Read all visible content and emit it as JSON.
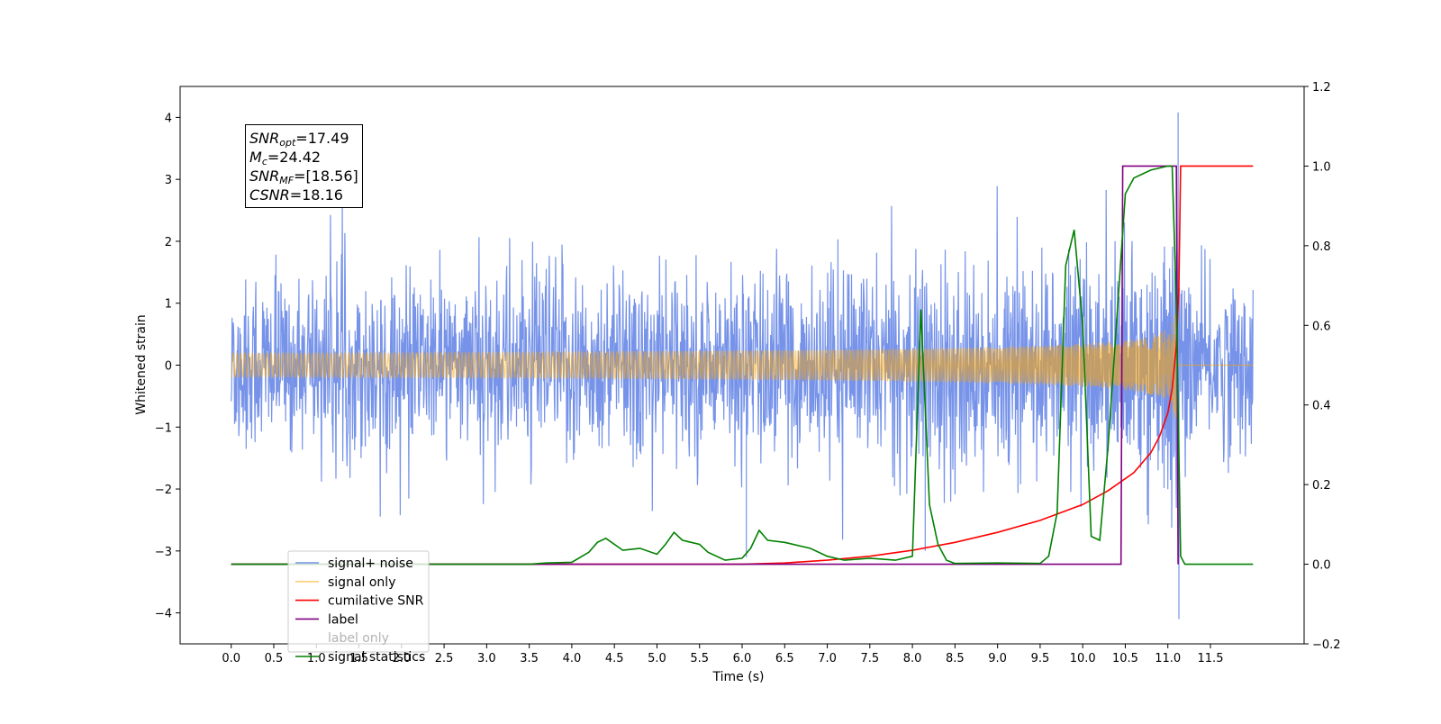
{
  "chart_data": {
    "type": "line",
    "xlabel": "Time (s)",
    "ylabel": "Whitened strain",
    "xlim": [
      -0.6,
      12.6
    ],
    "ylim": [
      -4.5,
      4.5
    ],
    "y2lim": [
      -0.2,
      1.2
    ],
    "x_ticks": [
      "0.0",
      "0.5",
      "1.0",
      "1.5",
      "2.0",
      "2.5",
      "3.0",
      "3.5",
      "4.0",
      "4.5",
      "5.0",
      "5.5",
      "6.0",
      "6.5",
      "7.0",
      "7.5",
      "8.0",
      "8.5",
      "9.0",
      "9.5",
      "10.0",
      "10.5",
      "11.0",
      "11.5"
    ],
    "y_ticks": [
      "4",
      "3",
      "2",
      "1",
      "0",
      "−1",
      "−2",
      "−3",
      "−4"
    ],
    "y2_ticks": [
      "1.2",
      "1.0",
      "0.8",
      "0.6",
      "0.4",
      "0.2",
      "0.0",
      "−0.2"
    ],
    "grid": false,
    "legend_position": "lower-left",
    "annotation": {
      "snr_opt": {
        "symbol": "SNR",
        "sub": "opt",
        "value": "=17.49"
      },
      "mc": {
        "symbol": "M",
        "sub": "c",
        "value": "=24.42"
      },
      "snr_mf": {
        "symbol": "SNR",
        "sub": "MF",
        "value": "=[18.56]"
      },
      "csnr": {
        "symbol": "CSNR",
        "sub": "",
        "value": "=18.16"
      }
    },
    "series": [
      {
        "name": "signal+ noise",
        "color": "#4169e1",
        "axis": "left",
        "description_of_values": "noise band",
        "x_range": [
          0.0,
          12.0
        ],
        "typical_amplitude": 1.4,
        "spike_x": [
          11.12,
          6.05,
          8.15
        ],
        "spike_y": [
          4.08,
          -3.1,
          -3.0
        ]
      },
      {
        "name": "signal only",
        "color": "#ffa500",
        "axis": "left",
        "x_range": [
          0.0,
          12.0
        ],
        "chirp_peak_x": 11.1,
        "chirp_peak_amplitude": 1.9
      },
      {
        "name": "cumilative SNR",
        "color": "#ff0000",
        "axis": "right",
        "x": [
          0,
          6,
          6.5,
          7,
          7.5,
          8,
          8.5,
          9,
          9.5,
          10,
          10.3,
          10.6,
          10.8,
          10.9,
          11.0,
          11.05,
          11.1,
          11.13,
          11.15,
          11.2,
          12.0
        ],
        "y": [
          0,
          0,
          0.003,
          0.01,
          0.02,
          0.035,
          0.055,
          0.08,
          0.11,
          0.15,
          0.185,
          0.23,
          0.28,
          0.32,
          0.38,
          0.44,
          0.55,
          0.7,
          1.0,
          1.0,
          1.0
        ]
      },
      {
        "name": "label",
        "color": "#800080",
        "axis": "right",
        "x": [
          0,
          10.45,
          10.47,
          11.1,
          11.12
        ],
        "y": [
          0,
          0,
          1.0,
          1.0,
          0
        ]
      },
      {
        "name": "label only",
        "color": "#b3b3b3",
        "axis": "right",
        "hidden": true
      },
      {
        "name": "signal statistics",
        "color": "#008000",
        "axis": "right",
        "x": [
          0,
          3.5,
          3.7,
          4.0,
          4.2,
          4.3,
          4.4,
          4.6,
          4.8,
          5.0,
          5.1,
          5.2,
          5.3,
          5.5,
          5.6,
          5.8,
          6.0,
          6.1,
          6.2,
          6.3,
          6.5,
          6.8,
          7.0,
          7.2,
          7.5,
          7.8,
          8.0,
          8.1,
          8.2,
          8.3,
          8.4,
          8.5,
          9.0,
          9.5,
          9.6,
          9.7,
          9.8,
          9.9,
          10.0,
          10.1,
          10.2,
          10.3,
          10.5,
          10.6,
          10.8,
          11.0,
          11.05,
          11.1,
          11.15,
          11.2,
          12.0
        ],
        "y": [
          0,
          0,
          0.003,
          0.005,
          0.03,
          0.055,
          0.065,
          0.035,
          0.04,
          0.025,
          0.05,
          0.08,
          0.06,
          0.05,
          0.03,
          0.01,
          0.015,
          0.04,
          0.085,
          0.06,
          0.055,
          0.04,
          0.02,
          0.01,
          0.015,
          0.01,
          0.02,
          0.64,
          0.15,
          0.05,
          0.01,
          0.002,
          0.003,
          0.002,
          0.02,
          0.13,
          0.75,
          0.84,
          0.6,
          0.07,
          0.06,
          0.3,
          0.93,
          0.97,
          0.99,
          1.0,
          1.0,
          0.65,
          0.02,
          0.0,
          0.0
        ]
      }
    ]
  }
}
